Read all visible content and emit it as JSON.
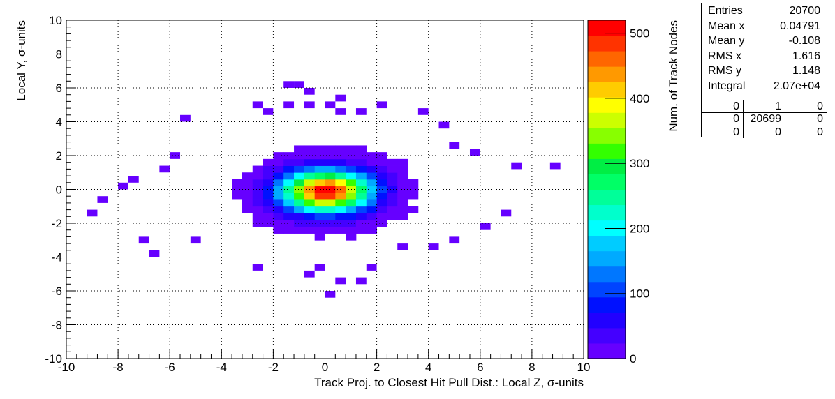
{
  "chart_data": {
    "type": "heatmap",
    "xlabel": "Track Proj. to Closest Hit Pull Dist.: Local Z, σ-units",
    "ylabel": "Local Y, σ-units",
    "zlabel": "Num. of Track Nodes",
    "xlim": [
      -10,
      10
    ],
    "ylim": [
      -10,
      10
    ],
    "zlim": [
      0,
      520
    ],
    "x_ticks": [
      -10,
      -8,
      -6,
      -4,
      -2,
      0,
      2,
      4,
      6,
      8,
      10
    ],
    "y_ticks": [
      -10,
      -8,
      -6,
      -4,
      -2,
      0,
      2,
      4,
      6,
      8,
      10
    ],
    "z_ticks": [
      0,
      100,
      200,
      300,
      400,
      500
    ],
    "grid": true,
    "palette": [
      "#6600ff",
      "#4400ff",
      "#2200ff",
      "#0011ff",
      "#0044ff",
      "#0077ff",
      "#00aaff",
      "#00ccff",
      "#00ffff",
      "#00ffcc",
      "#00ff99",
      "#00ff66",
      "#00ee44",
      "#33ff00",
      "#88ff00",
      "#ccff00",
      "#ffff00",
      "#ffcc00",
      "#ff9900",
      "#ff6600",
      "#ff3300",
      "#ff0000"
    ],
    "bin_width": 0.4,
    "distribution": {
      "mean_x": 0.04791,
      "mean_y": -0.108,
      "rms_x": 1.616,
      "rms_y": 1.148,
      "peak": 520
    },
    "outliers": [
      [
        -9.0,
        -1.4
      ],
      [
        -8.6,
        -0.6
      ],
      [
        -7.8,
        0.2
      ],
      [
        -7.4,
        0.6
      ],
      [
        -7.0,
        -3.0
      ],
      [
        -6.6,
        -3.8
      ],
      [
        -6.2,
        1.2
      ],
      [
        -5.8,
        2.0
      ],
      [
        -5.4,
        4.2
      ],
      [
        -5.0,
        -3.0
      ],
      [
        -2.6,
        5.0
      ],
      [
        -2.2,
        4.6
      ],
      [
        -1.4,
        6.2
      ],
      [
        -1.0,
        6.2
      ],
      [
        -0.6,
        5.8
      ],
      [
        -1.4,
        5.0
      ],
      [
        -0.6,
        5.0
      ],
      [
        0.2,
        5.0
      ],
      [
        0.6,
        4.6
      ],
      [
        0.6,
        5.4
      ],
      [
        1.4,
        4.6
      ],
      [
        2.2,
        5.0
      ],
      [
        3.8,
        4.6
      ],
      [
        4.6,
        3.8
      ],
      [
        5.0,
        2.6
      ],
      [
        5.8,
        2.2
      ],
      [
        7.4,
        1.4
      ],
      [
        8.9,
        1.4
      ],
      [
        7.0,
        -1.4
      ],
      [
        6.2,
        -2.2
      ],
      [
        5.0,
        -3.0
      ],
      [
        4.2,
        -3.4
      ],
      [
        3.0,
        -3.4
      ],
      [
        -2.6,
        -4.6
      ],
      [
        -0.6,
        -5.0
      ],
      [
        -0.2,
        -4.6
      ],
      [
        0.6,
        -5.4
      ],
      [
        1.4,
        -5.4
      ],
      [
        1.8,
        -4.6
      ],
      [
        0.2,
        -6.2
      ]
    ]
  },
  "stats": {
    "entries_label": "Entries",
    "entries": "20700",
    "mean_x_label": "Mean x",
    "mean_x": "0.04791",
    "mean_y_label": "Mean y",
    "mean_y": "-0.108",
    "rms_x_label": "RMS x",
    "rms_x": "1.616",
    "rms_y_label": "RMS y",
    "rms_y": "1.148",
    "integral_label": "Integral",
    "integral": "2.07e+04",
    "grid": [
      [
        "0",
        "1",
        "0"
      ],
      [
        "0",
        "20699",
        "0"
      ],
      [
        "0",
        "0",
        "0"
      ]
    ]
  }
}
